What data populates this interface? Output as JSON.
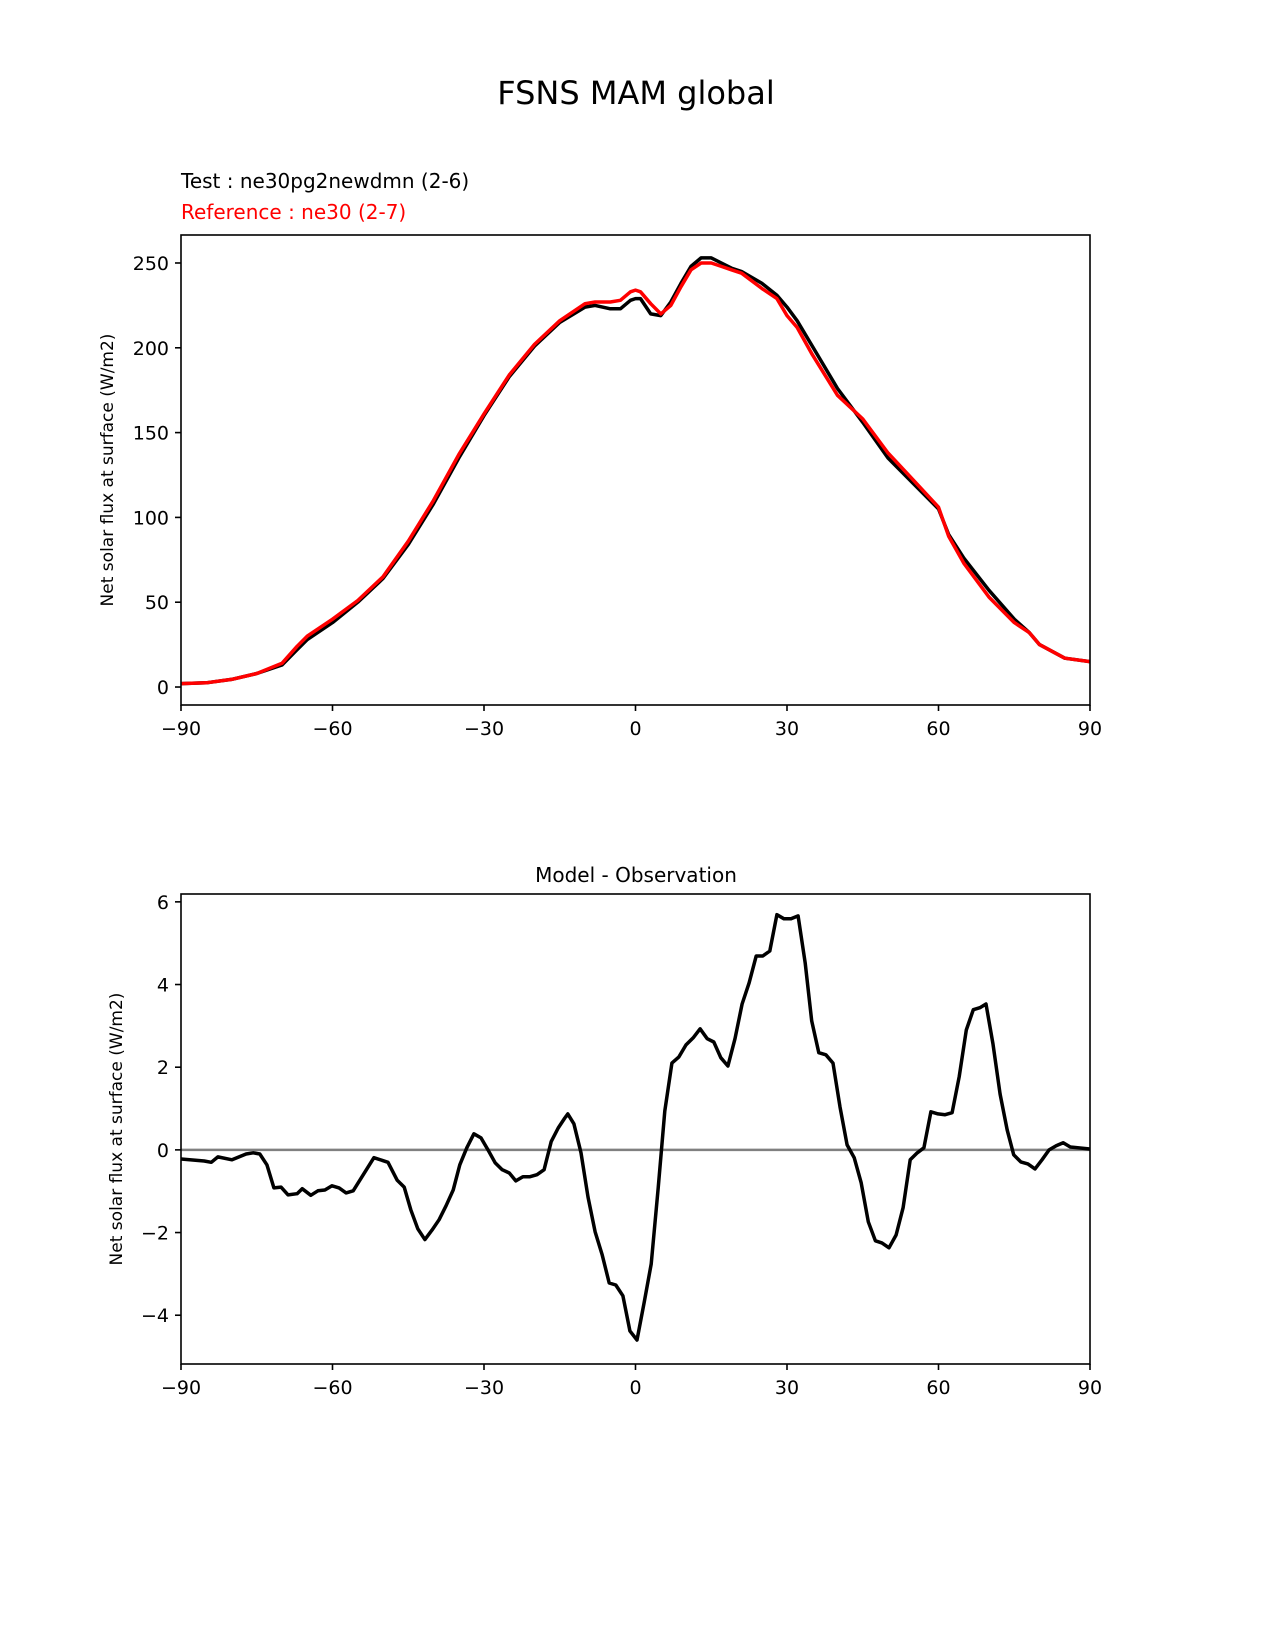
{
  "chart_data": {
    "title": "FSNS MAM global",
    "test_label": "Test : ne30pg2newdmn (2-6)",
    "reference_label": "Reference : ne30 (2-7)",
    "colors": {
      "test": "#000000",
      "reference": "#ff0000",
      "zero_line": "#808080"
    },
    "panels": [
      {
        "type": "line",
        "title": "",
        "ylabel": "Net solar flux at surface (W/m2)",
        "xlim": [
          -90,
          90
        ],
        "ylim": [
          -10.6,
          266.5
        ],
        "xticks": [
          -90,
          -60,
          -30,
          0,
          30,
          60,
          90
        ],
        "xtick_labels": [
          "−90",
          "−60",
          "−30",
          "0",
          "30",
          "60",
          "90"
        ],
        "yticks": [
          0,
          50,
          100,
          150,
          200,
          250
        ],
        "ytick_labels": [
          "0",
          "50",
          "100",
          "150",
          "200",
          "250"
        ],
        "series": [
          {
            "name": "test",
            "x": [
              -90,
              -85,
              -80,
              -75,
              -70,
              -67,
              -65,
              -60,
              -55,
              -50,
              -45,
              -40,
              -35,
              -30,
              -25,
              -20,
              -15,
              -10,
              -8,
              -5,
              -3,
              -1,
              0,
              1,
              3,
              5,
              7,
              9,
              11,
              13,
              15,
              17,
              19,
              21,
              25,
              28,
              30,
              32,
              35,
              40,
              45,
              50,
              55,
              60,
              62,
              65,
              70,
              75,
              78,
              80,
              85,
              90
            ],
            "y": [
              2,
              2.5,
              4.5,
              8,
              13,
              22,
              28,
              38,
              50,
              64,
              84,
              108,
              135,
              160,
              183,
              201,
              215,
              224,
              225,
              223,
              223,
              228,
              229,
              229,
              220,
              219,
              227,
              238,
              248,
              253,
              253,
              250,
              247,
              245,
              238,
              231,
              224,
              216,
              201,
              176,
              156,
              135,
              120,
              105,
              90,
              76,
              57,
              40,
              32,
              25,
              17,
              15
            ]
          },
          {
            "name": "reference",
            "x": [
              -90,
              -85,
              -80,
              -75,
              -70,
              -67,
              -65,
              -60,
              -55,
              -50,
              -45,
              -40,
              -35,
              -30,
              -25,
              -20,
              -15,
              -10,
              -8,
              -5,
              -3,
              -1,
              0,
              1,
              3,
              5,
              7,
              9,
              11,
              13,
              15,
              17,
              19,
              21,
              25,
              28,
              30,
              32,
              35,
              40,
              45,
              50,
              55,
              60,
              62,
              65,
              70,
              75,
              78,
              80,
              85,
              90
            ],
            "y": [
              2,
              2.5,
              4.5,
              8,
              14,
              24,
              30,
              40,
              51,
              65,
              86,
              110,
              137,
              161,
              184,
              202,
              216,
              226,
              227,
              227,
              228,
              233,
              234,
              233,
              226,
              220,
              225,
              236,
              246,
              250,
              250,
              248,
              246,
              244,
              235,
              229,
              219,
              212,
              196,
              172,
              158,
              138,
              122,
              106,
              89,
              73,
              53,
              38,
              32,
              25,
              17,
              15
            ]
          }
        ]
      },
      {
        "type": "line",
        "title": "Model - Observation",
        "ylabel": "Net solar flux at surface (W/m2)",
        "xlim": [
          -90,
          90
        ],
        "ylim": [
          -5.18,
          6.19
        ],
        "xticks": [
          -90,
          -60,
          -30,
          0,
          30,
          60,
          90
        ],
        "xtick_labels": [
          "−90",
          "−60",
          "−30",
          "0",
          "30",
          "60",
          "90"
        ],
        "yticks": [
          -4,
          -2,
          0,
          2,
          4,
          6
        ],
        "ytick_labels": [
          "−4",
          "−2",
          "0",
          "2",
          "4",
          "6"
        ],
        "zero_line": 0,
        "series": [
          {
            "name": "difference",
            "x": [
              -90,
              -85.4,
              -84,
              -82.7,
              -79.9,
              -77.1,
              -75.7,
              -74.4,
              -73,
              -71.6,
              -70.2,
              -68.8,
              -67,
              -66,
              -64.3,
              -62.9,
              -61.5,
              -60.1,
              -58.7,
              -57.3,
              -55.9,
              -51.8,
              -49,
              -47.2,
              -45.8,
              -44.5,
              -43.1,
              -41.7,
              -40.3,
              -38.9,
              -37.5,
              -36.1,
              -34.8,
              -33.4,
              -32,
              -30.6,
              -29.2,
              -27.8,
              -26.4,
              -25,
              -23.7,
              -22.3,
              -20.9,
              -19.5,
              -18.1,
              -16.7,
              -15.3,
              -14,
              -13.4,
              -12.2,
              -10.8,
              -9.4,
              -8,
              -6.6,
              -5.2,
              -3.9,
              -2.5,
              -1.1,
              0.3,
              1.7,
              3.1,
              4.5,
              5.8,
              7.2,
              8.6,
              10,
              11.4,
              12.8,
              14.2,
              15.5,
              16.9,
              18.3,
              19.7,
              21.1,
              22.5,
              23.9,
              25.2,
              26.6,
              28,
              29.4,
              30.8,
              32.2,
              33.6,
              34.9,
              36.3,
              37.7,
              39.1,
              40.5,
              41.9,
              43.3,
              44.7,
              46.1,
              47.5,
              48.8,
              50.2,
              51.6,
              53,
              54.4,
              55.8,
              57.1,
              58.5,
              59.9,
              61.3,
              62.7,
              64.1,
              65.5,
              66.9,
              68.2,
              69.4,
              70.8,
              72.2,
              73.6,
              74.9,
              76.3,
              77.7,
              79.1,
              80.5,
              81.9,
              83.3,
              84.7,
              86.1,
              90
            ],
            "y": [
              -0.22,
              -0.27,
              -0.3,
              -0.17,
              -0.24,
              -0.1,
              -0.07,
              -0.1,
              -0.36,
              -0.92,
              -0.9,
              -1.09,
              -1.06,
              -0.94,
              -1.1,
              -0.99,
              -0.97,
              -0.87,
              -0.92,
              -1.04,
              -0.99,
              -0.19,
              -0.3,
              -0.73,
              -0.9,
              -1.45,
              -1.91,
              -2.17,
              -1.94,
              -1.69,
              -1.35,
              -0.97,
              -0.36,
              0.05,
              0.39,
              0.29,
              0,
              -0.31,
              -0.48,
              -0.56,
              -0.75,
              -0.65,
              -0.65,
              -0.6,
              -0.48,
              0.2,
              0.53,
              0.77,
              0.87,
              0.63,
              -0.07,
              -1.14,
              -1.98,
              -2.54,
              -3.22,
              -3.27,
              -3.53,
              -4.38,
              -4.6,
              -3.7,
              -2.76,
              -0.92,
              0.94,
              2.1,
              2.25,
              2.54,
              2.71,
              2.93,
              2.69,
              2.61,
              2.23,
              2.03,
              2.69,
              3.53,
              4.04,
              4.69,
              4.69,
              4.81,
              5.69,
              5.59,
              5.59,
              5.66,
              4.52,
              3.12,
              2.35,
              2.3,
              2.1,
              1.04,
              0.12,
              -0.19,
              -0.8,
              -1.74,
              -2.2,
              -2.25,
              -2.37,
              -2.06,
              -1.4,
              -0.24,
              -0.07,
              0.05,
              0.92,
              0.87,
              0.85,
              0.9,
              1.77,
              2.9,
              3.39,
              3.44,
              3.53,
              2.56,
              1.35,
              0.48,
              -0.12,
              -0.29,
              -0.34,
              -0.46,
              -0.24,
              0,
              0.1,
              0.17,
              0.07,
              0.02
            ]
          }
        ]
      }
    ]
  }
}
